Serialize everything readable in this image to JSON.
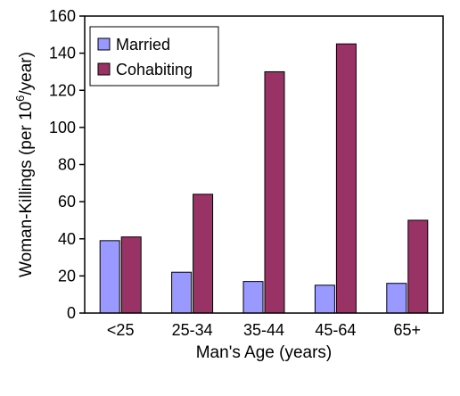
{
  "chart_data": {
    "type": "bar",
    "categories": [
      "<25",
      "25-34",
      "35-44",
      "45-64",
      "65+"
    ],
    "series": [
      {
        "name": "Married",
        "values": [
          39,
          22,
          17,
          15,
          16
        ],
        "color": "#9999ff"
      },
      {
        "name": "Cohabiting",
        "values": [
          41,
          64,
          130,
          145,
          50
        ],
        "color": "#993366"
      }
    ],
    "ylim": [
      0,
      160
    ],
    "yticks": [
      0,
      20,
      40,
      60,
      80,
      100,
      120,
      140,
      160
    ],
    "xlabel": "Man's Age (years)",
    "ylabel": {
      "main": "Woman-Killings (per 10",
      "sup": "6",
      "tail": "/year)"
    },
    "legend_position": "top-left",
    "grid": false
  }
}
